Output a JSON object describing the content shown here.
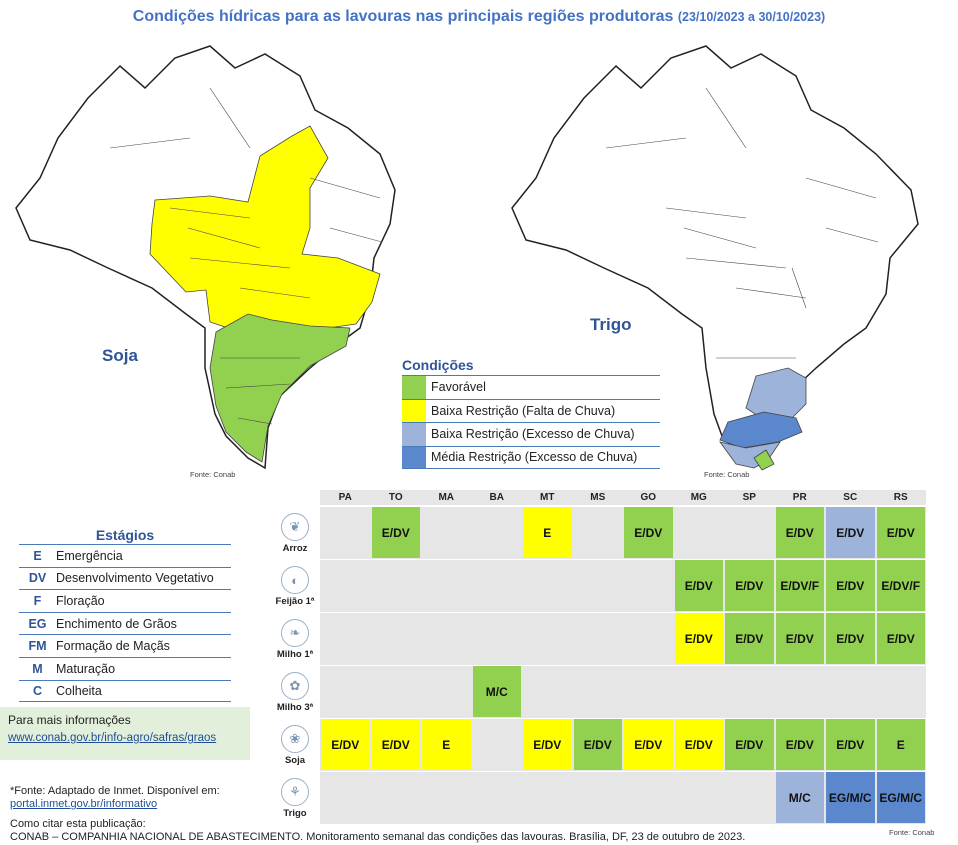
{
  "title": {
    "main": "Condições hídricas para as lavouras nas principais regiões produtoras",
    "period": "(23/10/2023 a 30/10/2023)"
  },
  "maps": {
    "soja_label": "Soja",
    "trigo_label": "Trigo",
    "fonte": "Fonte: Conab"
  },
  "legend": {
    "title": "Condições",
    "items": [
      {
        "label": "Favorável",
        "color": "#92d050"
      },
      {
        "label": "Baixa Restrição (Falta de Chuva)",
        "color": "#ffff00"
      },
      {
        "label": "Baixa Restrição (Excesso de Chuva)",
        "color": "#9db3d9"
      },
      {
        "label": "Média Restrição (Excesso de Chuva)",
        "color": "#5b87cc"
      }
    ]
  },
  "estagios": {
    "title": "Estágios",
    "items": [
      {
        "code": "E",
        "desc": "Emergência"
      },
      {
        "code": "DV",
        "desc": "Desenvolvimento Vegetativo"
      },
      {
        "code": "F",
        "desc": "Floração"
      },
      {
        "code": "EG",
        "desc": "Enchimento de Grãos"
      },
      {
        "code": "FM",
        "desc": "Formação de Maçãs"
      },
      {
        "code": "M",
        "desc": "Maturação"
      },
      {
        "code": "C",
        "desc": "Colheita"
      }
    ]
  },
  "info": {
    "title": "Para mais informações",
    "link": "www.conab.gov.br/info-agro/safras/graos"
  },
  "footnote": {
    "text": "*Fonte: Adaptado de Inmet. Disponível em:",
    "link": "portal.inmet.gov.br/informativo"
  },
  "citation": {
    "title": "Como citar esta publicação:",
    "text": "CONAB – COMPANHIA NACIONAL DE ABASTECIMENTO. Monitoramento semanal das condições das lavouras. Brasília, DF, 23 de outubro de 2023."
  },
  "grid": {
    "states": [
      "PA",
      "TO",
      "MA",
      "BA",
      "MT",
      "MS",
      "GO",
      "MG",
      "SP",
      "PR",
      "SC",
      "RS"
    ],
    "fonte": "Fonte: Conab",
    "crops": [
      {
        "label": "Arroz",
        "icon": "rice-icon",
        "glyph": "❦",
        "cells": [
          null,
          {
            "t": "E/DV",
            "c": "g"
          },
          null,
          null,
          {
            "t": "E",
            "c": "y"
          },
          null,
          {
            "t": "E/DV",
            "c": "g"
          },
          null,
          null,
          {
            "t": "E/DV",
            "c": "g"
          },
          {
            "t": "E/DV",
            "c": "lb"
          },
          {
            "t": "E/DV",
            "c": "g"
          }
        ]
      },
      {
        "label": "Feijão 1ª",
        "icon": "bean-icon",
        "glyph": "◐",
        "cells": [
          null,
          null,
          null,
          null,
          null,
          null,
          null,
          {
            "t": "E/DV",
            "c": "g"
          },
          {
            "t": "E/DV",
            "c": "g"
          },
          {
            "t": "E/DV/F",
            "c": "g"
          },
          {
            "t": "E/DV",
            "c": "g"
          },
          {
            "t": "E/DV/F",
            "c": "g"
          }
        ]
      },
      {
        "label": "Milho 1ª",
        "icon": "corn-icon",
        "glyph": "❧",
        "cells": [
          null,
          null,
          null,
          null,
          null,
          null,
          null,
          {
            "t": "E/DV",
            "c": "y"
          },
          {
            "t": "E/DV",
            "c": "g"
          },
          {
            "t": "E/DV",
            "c": "g"
          },
          {
            "t": "E/DV",
            "c": "g"
          },
          {
            "t": "E/DV",
            "c": "g"
          }
        ]
      },
      {
        "label": "Milho 3ª",
        "icon": "corn-icon",
        "glyph": "✿",
        "cells": [
          null,
          null,
          null,
          {
            "t": "M/C",
            "c": "g"
          },
          null,
          null,
          null,
          null,
          null,
          null,
          null,
          null
        ]
      },
      {
        "label": "Soja",
        "icon": "soy-icon",
        "glyph": "❀",
        "cells": [
          {
            "t": "E/DV",
            "c": "y"
          },
          {
            "t": "E/DV",
            "c": "y"
          },
          {
            "t": "E",
            "c": "y"
          },
          null,
          {
            "t": "E/DV",
            "c": "y"
          },
          {
            "t": "E/DV",
            "c": "g"
          },
          {
            "t": "E/DV",
            "c": "y"
          },
          {
            "t": "E/DV",
            "c": "y"
          },
          {
            "t": "E/DV",
            "c": "g"
          },
          {
            "t": "E/DV",
            "c": "g"
          },
          {
            "t": "E/DV",
            "c": "g"
          },
          {
            "t": "E",
            "c": "g"
          }
        ]
      },
      {
        "label": "Trigo",
        "icon": "wheat-icon",
        "glyph": "⚘",
        "cells": [
          null,
          null,
          null,
          null,
          null,
          null,
          null,
          null,
          null,
          {
            "t": "M/C",
            "c": "lb"
          },
          {
            "t": "EG/M/C",
            "c": "mb"
          },
          {
            "t": "EG/M/C",
            "c": "mb"
          }
        ]
      }
    ]
  },
  "colors": {
    "g": "#92d050",
    "y": "#ffff00",
    "lb": "#9db3d9",
    "mb": "#5b87cc"
  }
}
